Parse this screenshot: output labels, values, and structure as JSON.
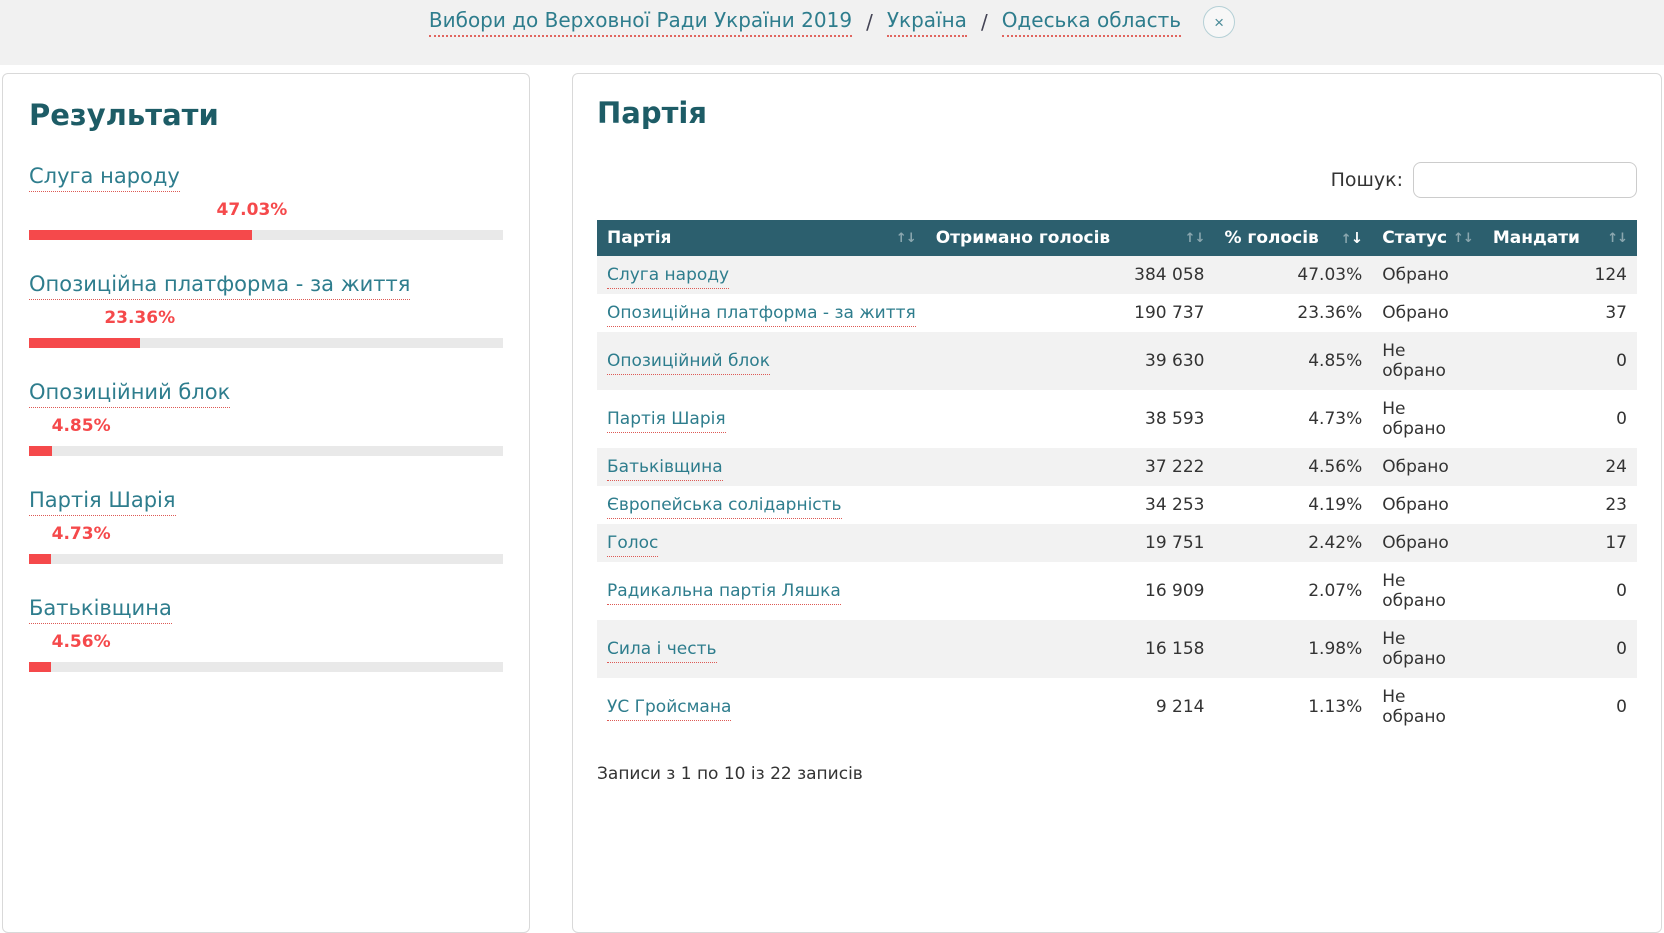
{
  "breadcrumb": {
    "items": [
      {
        "label": "Вибори до Верховної Ради України 2019"
      },
      {
        "label": "Україна"
      },
      {
        "label": "Одеська область"
      }
    ],
    "separator": "/",
    "close_icon": "×"
  },
  "results_panel": {
    "title": "Результати",
    "items": [
      {
        "party": "Слуга народу",
        "pct": 47.03,
        "pct_label": "47.03%"
      },
      {
        "party": "Опозиційна платформа - за життя",
        "pct": 23.36,
        "pct_label": "23.36%"
      },
      {
        "party": "Опозиційний блок",
        "pct": 4.85,
        "pct_label": "4.85%"
      },
      {
        "party": "Партія Шарія",
        "pct": 4.73,
        "pct_label": "4.73%"
      },
      {
        "party": "Батьківщина",
        "pct": 4.56,
        "pct_label": "4.56%"
      }
    ]
  },
  "party_panel": {
    "title": "Партія",
    "search_label": "Пошук:",
    "search_value": "",
    "table": {
      "sort_icons": {
        "asc": "↑",
        "desc": "↓"
      },
      "columns": [
        {
          "label": "Партія",
          "sorted": null
        },
        {
          "label": "Отримано голосів",
          "sorted": null
        },
        {
          "label": "% голосів",
          "sorted": "desc"
        },
        {
          "label": "Статус",
          "sorted": null
        },
        {
          "label": "Мандати",
          "sorted": null
        }
      ],
      "rows": [
        {
          "party": "Слуга народу",
          "votes": "384 058",
          "pct": "47.03%",
          "status": "Обрано",
          "mandates": "124"
        },
        {
          "party": "Опозиційна платформа - за життя",
          "votes": "190 737",
          "pct": "23.36%",
          "status": "Обрано",
          "mandates": "37"
        },
        {
          "party": "Опозиційний блок",
          "votes": "39 630",
          "pct": "4.85%",
          "status": "Не обрано",
          "mandates": "0"
        },
        {
          "party": "Партія Шарія",
          "votes": "38 593",
          "pct": "4.73%",
          "status": "Не обрано",
          "mandates": "0"
        },
        {
          "party": "Батьківщина",
          "votes": "37 222",
          "pct": "4.56%",
          "status": "Обрано",
          "mandates": "24"
        },
        {
          "party": "Європейська солідарність",
          "votes": "34 253",
          "pct": "4.19%",
          "status": "Обрано",
          "mandates": "23"
        },
        {
          "party": "Голос",
          "votes": "19 751",
          "pct": "2.42%",
          "status": "Обрано",
          "mandates": "17"
        },
        {
          "party": "Радикальна партія Ляшка",
          "votes": "16 909",
          "pct": "2.07%",
          "status": "Не обрано",
          "mandates": "0"
        },
        {
          "party": "Сила і честь",
          "votes": "16 158",
          "pct": "1.98%",
          "status": "Не обрано",
          "mandates": "0"
        },
        {
          "party": "УС Гройсмана",
          "votes": "9 214",
          "pct": "1.13%",
          "status": "Не обрано",
          "mandates": "0"
        }
      ]
    },
    "pagination_info": "Записи з 1 по 10 із 22 записів"
  },
  "colors": {
    "header_strip_bg": "#f1f1f1",
    "table_header_bg": "#2c5f6e",
    "title_text": "#1d5c66",
    "link_teal": "#2e7d8d",
    "accent_red": "#f5494b",
    "bar_track": "#e9e9e9",
    "row_stripe": "#f2f2f2"
  }
}
